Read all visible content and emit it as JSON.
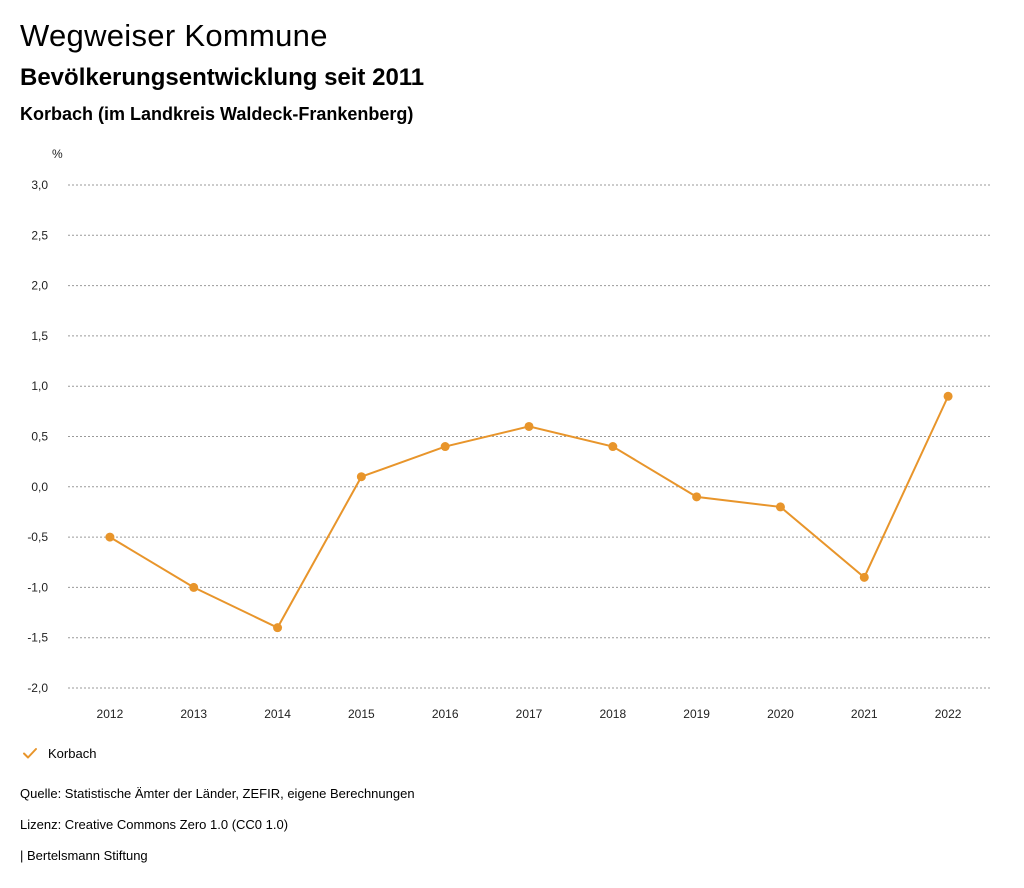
{
  "header": {
    "title": "Wegweiser Kommune",
    "subtitle": "Bevölkerungsentwicklung seit 2011",
    "region": "Korbach (im Landkreis Waldeck-Frankenberg)"
  },
  "chart_data": {
    "type": "line",
    "unit_label": "%",
    "x": [
      "2012",
      "2013",
      "2014",
      "2015",
      "2016",
      "2017",
      "2018",
      "2019",
      "2020",
      "2021",
      "2022"
    ],
    "series": [
      {
        "name": "Korbach",
        "values": [
          -0.5,
          -1.0,
          -1.4,
          0.1,
          0.4,
          0.6,
          0.4,
          -0.1,
          -0.2,
          -0.9,
          0.9
        ]
      }
    ],
    "ylim": [
      -2.0,
      3.0
    ],
    "yticks": [
      -2.0,
      -1.5,
      -1.0,
      -0.5,
      0.0,
      0.5,
      1.0,
      1.5,
      2.0,
      2.5,
      3.0
    ],
    "ytick_labels": [
      "-2,0",
      "-1,5",
      "-1,0",
      "-0,5",
      "0,0",
      "0,5",
      "1,0",
      "1,5",
      "2,0",
      "2,5",
      "3,0"
    ],
    "grid": true,
    "color": "#E8952B",
    "legend": "bottom-left"
  },
  "legend": {
    "label": "Korbach"
  },
  "footer": {
    "source": "Quelle: Statistische Ämter der Länder, ZEFIR, eigene Berechnungen",
    "license": "Lizenz: Creative Commons Zero 1.0 (CC0 1.0)",
    "brand": "| Bertelsmann Stiftung"
  }
}
